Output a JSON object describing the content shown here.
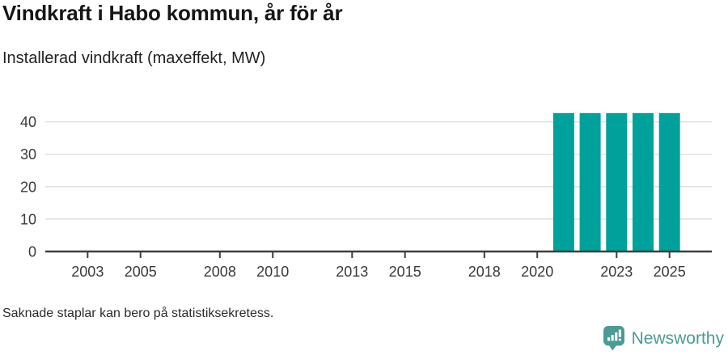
{
  "header": {
    "title": "Vindkraft i Habo kommun, år för år",
    "subtitle": "Installerad vindkraft (maxeffekt, MW)"
  },
  "chart_data": {
    "type": "bar",
    "title": "Vindkraft i Habo kommun, år för år",
    "subtitle": "Installerad vindkraft (maxeffekt, MW)",
    "categories": [
      2021,
      2022,
      2023,
      2024,
      2025
    ],
    "values": [
      42.7,
      42.7,
      42.7,
      42.7,
      42.7
    ],
    "x_tick_labels": [
      2003,
      2005,
      2008,
      2010,
      2013,
      2015,
      2018,
      2020,
      2023,
      2025
    ],
    "y_ticks": [
      0,
      10,
      20,
      30,
      40
    ],
    "xlim": [
      2001.4,
      2026.6
    ],
    "ylim": [
      0,
      45.9
    ],
    "xlabel": "",
    "ylabel": "",
    "grid": "horizontal",
    "legend": "none",
    "bar_color": "#00a19a",
    "note": "No bars shown for 2002-2020; missing bars may be due to statistical secrecy"
  },
  "colors": {
    "bar": "#00a19a",
    "axis_line": "#3f3f3f",
    "axis_text": "#3a3a3a",
    "gridline": "#e2e2e2",
    "brand_teal": "#4a9b94"
  },
  "footnote": {
    "text": "Saknade staplar kan bero på statistiksekretess."
  },
  "branding": {
    "logo_text": "Newsworthy",
    "logo_icon": "newsworthy-speech-bubble-chart-icon"
  }
}
